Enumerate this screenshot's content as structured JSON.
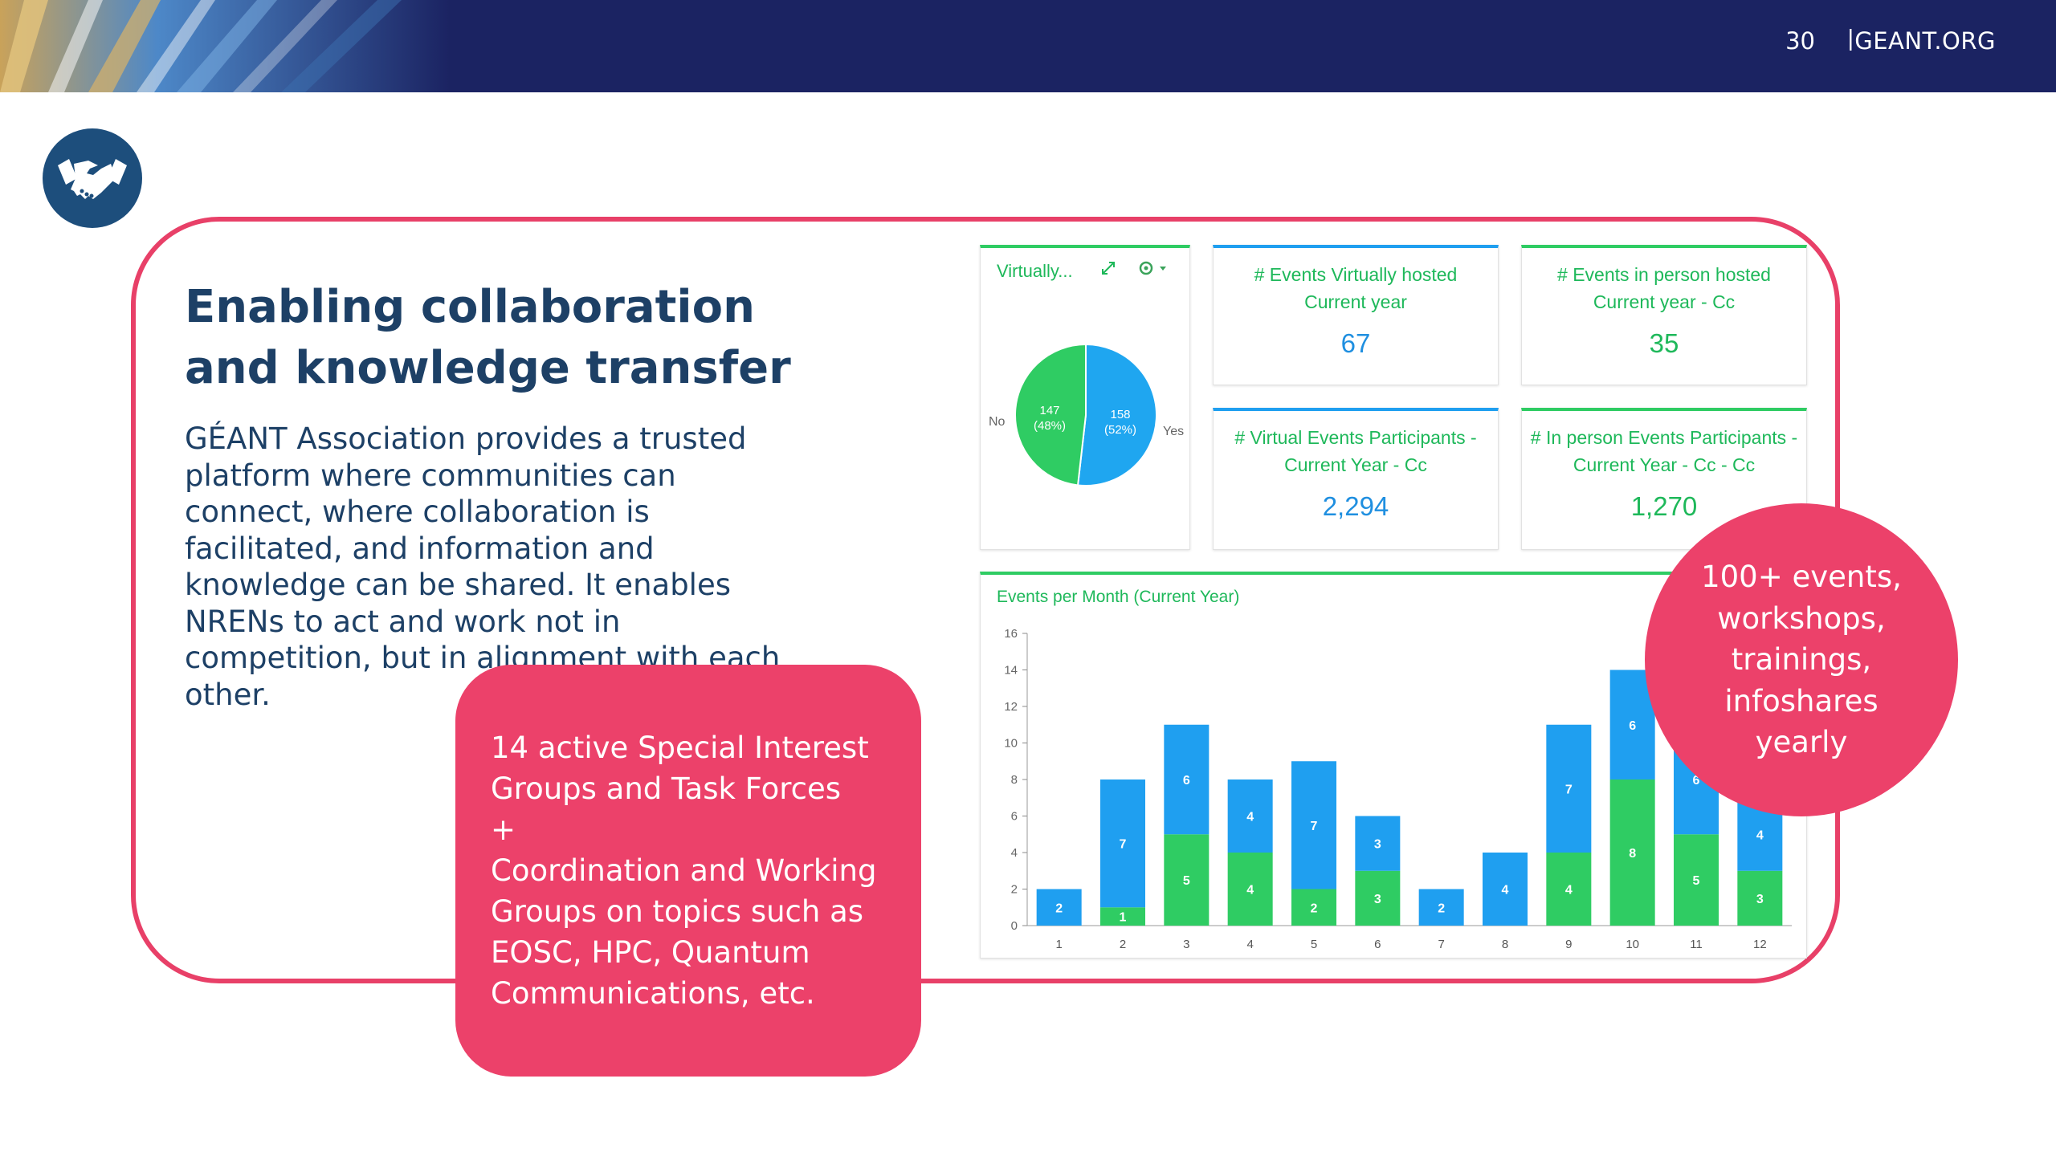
{
  "header": {
    "page_number": "30",
    "separator": "|",
    "site": "GEANT.ORG"
  },
  "title": "Enabling collaboration and knowledge transfer",
  "body_text": "GÉANT Association provides a trusted platform where communities can connect, where collaboration is facilitated, and information and knowledge can be shared. It enables NRENs to act and work not in competition, but in alignment with each other.",
  "pink_box": {
    "line1": "14 active Special Interest Groups and Task Forces",
    "plus": "+",
    "line2": "Coordination and Working Groups on topics such as EOSC, HPC, Quantum Communications, etc."
  },
  "circle_text": "100+ events, workshops, trainings, infoshares yearly",
  "icons": {
    "badge": "handshake-icon",
    "expand": "expand-icon",
    "settings": "gear-icon"
  },
  "colors": {
    "accent_pink": "#ec416a",
    "navy": "#1b2362",
    "green": "#2fcc63",
    "blue": "#1f9ff0",
    "title_blue": "#1d4066"
  },
  "dashboard": {
    "pie": {
      "title": "Virtually...",
      "label_no": "No",
      "label_yes": "Yes",
      "no_value": "147",
      "no_pct": "(48%)",
      "yes_value": "158",
      "yes_pct": "(52%)"
    },
    "kpis": [
      {
        "title": "# Events Virtually hosted Current year",
        "value": "67"
      },
      {
        "title": "# Events in person hosted Current year - Cc",
        "value": "35"
      },
      {
        "title": "# Virtual Events Participants - Current Year - Cc",
        "value": "2,294"
      },
      {
        "title": "# In person Events Participants - Current Year - Cc - Cc",
        "value": "1,270"
      }
    ]
  },
  "chart_data": [
    {
      "type": "pie",
      "title": "Virtually...",
      "slices": [
        {
          "name": "No",
          "value": 147,
          "percent": 48,
          "color": "#2fcc63"
        },
        {
          "name": "Yes",
          "value": 158,
          "percent": 52,
          "color": "#1fa6f0"
        }
      ]
    },
    {
      "type": "bar",
      "stacked": true,
      "title": "Events per Month (Current Year)",
      "categories": [
        "1",
        "2",
        "3",
        "4",
        "5",
        "6",
        "7",
        "8",
        "9",
        "10",
        "11",
        "12"
      ],
      "series": [
        {
          "color": "#2fcc63",
          "values": [
            0,
            1,
            5,
            4,
            2,
            3,
            0,
            0,
            4,
            8,
            5,
            3
          ]
        },
        {
          "color": "#1f9ff0",
          "values": [
            2,
            7,
            6,
            4,
            7,
            3,
            2,
            4,
            7,
            6,
            6,
            4
          ]
        }
      ],
      "ylim": [
        0,
        16
      ],
      "yticks": [
        "0",
        "2",
        "4",
        "6",
        "8",
        "10",
        "12",
        "14",
        "16"
      ]
    }
  ]
}
